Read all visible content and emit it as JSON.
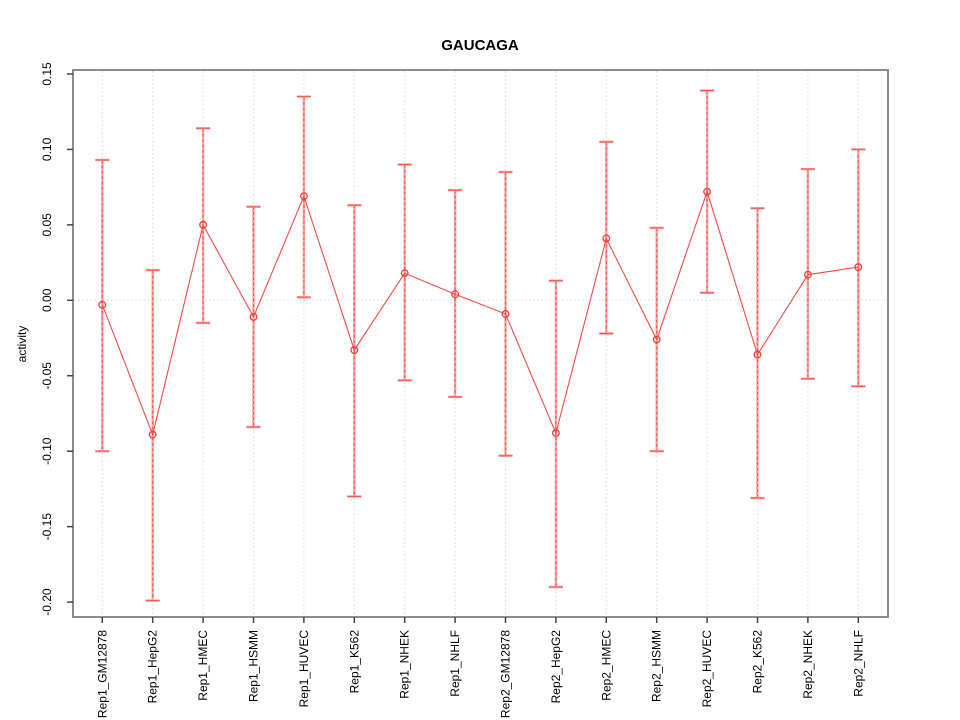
{
  "window": {
    "background": "#ffffff"
  },
  "chart_data": {
    "type": "line",
    "title": "GAUCAGA",
    "xlabel": "",
    "ylabel": "activity",
    "ylim": [
      -0.212,
      0.154
    ],
    "yticks": [
      0.15,
      0.1,
      0.05,
      0.0,
      -0.05,
      -0.1,
      -0.15,
      -0.2
    ],
    "legend": "none",
    "grid": "dotted light-gray vertical line at every category; dotted light-gray horizontal line at y=0",
    "x_axis": {
      "tick_label_rotation_deg": 90
    },
    "marker": "open-circle",
    "categories": [
      "Rep1_GM12878",
      "Rep1_HepG2",
      "Rep1_HMEC",
      "Rep1_HSMM",
      "Rep1_HUVEC",
      "Rep1_K562",
      "Rep1_NHEK",
      "Rep1_NHLF",
      "Rep2_GM12878",
      "Rep2_HepG2",
      "Rep2_HMEC",
      "Rep2_HSMM",
      "Rep2_HUVEC",
      "Rep2_K562",
      "Rep2_NHEK",
      "Rep2_NHLF"
    ],
    "series": [
      {
        "name": "activity",
        "values": [
          -0.003,
          -0.089,
          0.05,
          -0.011,
          0.069,
          -0.033,
          0.018,
          0.004,
          -0.009,
          -0.088,
          0.041,
          -0.026,
          0.072,
          -0.036,
          0.017,
          0.022
        ],
        "upper": [
          0.093,
          0.02,
          0.114,
          0.062,
          0.135,
          0.063,
          0.09,
          0.073,
          0.085,
          0.013,
          0.105,
          0.048,
          0.139,
          0.061,
          0.087,
          0.1
        ],
        "lower": [
          -0.1,
          -0.199,
          -0.015,
          -0.084,
          0.002,
          -0.13,
          -0.053,
          -0.064,
          -0.103,
          -0.19,
          -0.022,
          -0.1,
          0.005,
          -0.131,
          -0.052,
          -0.057
        ]
      }
    ],
    "colors": {
      "line": "#f64a46",
      "marker": "#f53d39",
      "error_bar_fill": "#f9a7a2",
      "error_bar_dash": "#f4514d",
      "error_cap": "#f3534f",
      "error_cap_under": "#f9a09b",
      "grid": "#d9d9d9",
      "axis_box": "#8c8c8c",
      "tick": "#444444",
      "text": "#000000",
      "background": "#ffffff"
    }
  }
}
